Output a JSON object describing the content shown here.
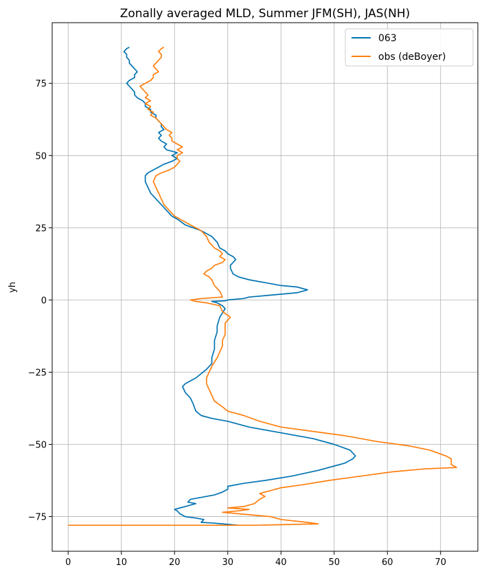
{
  "chart_data": {
    "type": "line",
    "title": "Zonally averaged MLD, Summer JFM(SH), JAS(NH)",
    "xlabel": "",
    "ylabel": "yh",
    "xlim": [
      -3,
      77
    ],
    "ylim": [
      -87,
      96
    ],
    "xticks": [
      0,
      10,
      20,
      30,
      40,
      50,
      60,
      70
    ],
    "yticks": [
      -75,
      -50,
      -25,
      0,
      25,
      50,
      75
    ],
    "xtick_labels": [
      "0",
      "10",
      "20",
      "30",
      "40",
      "50",
      "60",
      "70"
    ],
    "ytick_labels": [
      "−75",
      "−50",
      "−25",
      "0",
      "25",
      "50",
      "75"
    ],
    "grid": true,
    "legend_position": "top-right",
    "series": [
      {
        "name": "063",
        "color": "#0173b2",
        "points": [
          [
            32,
            -78
          ],
          [
            29,
            -77.5
          ],
          [
            27,
            -77.2
          ],
          [
            25,
            -77
          ],
          [
            25.5,
            -76
          ],
          [
            24,
            -75.5
          ],
          [
            22,
            -75
          ],
          [
            21,
            -74
          ],
          [
            20.5,
            -73
          ],
          [
            20,
            -72.5
          ],
          [
            21,
            -72
          ],
          [
            22,
            -71.5
          ],
          [
            23,
            -71
          ],
          [
            24,
            -70.5
          ],
          [
            22.5,
            -70
          ],
          [
            23,
            -69
          ],
          [
            24.5,
            -68.5
          ],
          [
            26,
            -68
          ],
          [
            27.5,
            -67.5
          ],
          [
            29,
            -66.5
          ],
          [
            30,
            -65.5
          ],
          [
            30,
            -64.5
          ],
          [
            33,
            -63.5
          ],
          [
            37,
            -62.5
          ],
          [
            42,
            -61
          ],
          [
            47,
            -59
          ],
          [
            50,
            -57.5
          ],
          [
            52,
            -56.5
          ],
          [
            53.5,
            -55
          ],
          [
            54,
            -54
          ],
          [
            53,
            -52
          ],
          [
            50,
            -50
          ],
          [
            46,
            -48
          ],
          [
            40,
            -46
          ],
          [
            34,
            -44
          ],
          [
            30,
            -42
          ],
          [
            27,
            -41
          ],
          [
            25,
            -40
          ],
          [
            24,
            -38.5
          ],
          [
            23.5,
            -36
          ],
          [
            23,
            -34
          ],
          [
            22,
            -32
          ],
          [
            21.5,
            -30
          ],
          [
            22,
            -29
          ],
          [
            24,
            -27
          ],
          [
            26,
            -24
          ],
          [
            27,
            -22
          ],
          [
            27,
            -20
          ],
          [
            27.5,
            -17
          ],
          [
            27.5,
            -14
          ],
          [
            28,
            -11
          ],
          [
            28,
            -9
          ],
          [
            28.5,
            -6
          ],
          [
            29,
            -4.5
          ],
          [
            29.5,
            -3
          ],
          [
            29,
            -2
          ],
          [
            28,
            -1
          ],
          [
            27,
            -0.5
          ],
          [
            29.5,
            -0.3
          ],
          [
            30,
            0
          ],
          [
            33,
            0.5
          ],
          [
            34,
            1
          ],
          [
            37,
            1.5
          ],
          [
            40,
            2
          ],
          [
            43,
            2.5
          ],
          [
            45,
            3.5
          ],
          [
            43,
            4.5
          ],
          [
            40,
            5
          ],
          [
            37,
            6
          ],
          [
            34,
            7
          ],
          [
            32,
            8
          ],
          [
            31,
            9
          ],
          [
            30.5,
            11
          ],
          [
            30.5,
            12
          ],
          [
            31,
            13
          ],
          [
            31.5,
            14
          ],
          [
            31,
            15
          ],
          [
            30,
            16
          ],
          [
            29.5,
            17
          ],
          [
            28.5,
            18
          ],
          [
            28,
            20
          ],
          [
            27,
            22
          ],
          [
            25,
            24
          ],
          [
            22,
            26
          ],
          [
            20.5,
            28
          ],
          [
            19.5,
            29
          ],
          [
            18.5,
            31
          ],
          [
            17.5,
            33
          ],
          [
            16.5,
            35
          ],
          [
            15.5,
            37
          ],
          [
            15,
            39
          ],
          [
            14.5,
            41
          ],
          [
            14.5,
            43
          ],
          [
            15,
            44
          ],
          [
            16,
            45
          ],
          [
            17,
            46
          ],
          [
            18,
            47
          ],
          [
            19.5,
            48
          ],
          [
            20.5,
            49
          ],
          [
            19.5,
            50
          ],
          [
            20.5,
            51
          ],
          [
            18.5,
            52
          ],
          [
            18,
            53
          ],
          [
            18.5,
            54
          ],
          [
            17.5,
            55
          ],
          [
            17,
            56
          ],
          [
            17.5,
            57
          ],
          [
            17,
            58
          ],
          [
            18,
            59
          ],
          [
            17.5,
            60
          ],
          [
            17.5,
            61
          ],
          [
            17,
            62
          ],
          [
            16.5,
            63
          ],
          [
            16.5,
            64
          ],
          [
            15.5,
            65
          ],
          [
            15.5,
            66
          ],
          [
            14.5,
            67
          ],
          [
            14.5,
            68
          ],
          [
            14,
            69
          ],
          [
            13,
            70
          ],
          [
            12.5,
            71
          ],
          [
            12.5,
            72
          ],
          [
            12,
            73
          ],
          [
            11.5,
            74
          ],
          [
            11,
            75
          ],
          [
            11.5,
            76
          ],
          [
            12.5,
            77
          ],
          [
            12.5,
            78
          ],
          [
            13,
            79
          ],
          [
            12.5,
            80
          ],
          [
            12,
            81
          ],
          [
            11.5,
            82
          ],
          [
            11.5,
            83
          ],
          [
            11,
            84
          ],
          [
            11,
            85
          ],
          [
            10.5,
            86
          ],
          [
            11,
            87
          ],
          [
            11.5,
            87.5
          ]
        ]
      },
      {
        "name": "obs (deBoyer)",
        "color": "#ff7f0e",
        "points": [
          [
            0,
            -78
          ],
          [
            15,
            -78
          ],
          [
            35,
            -78
          ],
          [
            47,
            -77.5
          ],
          [
            45,
            -77
          ],
          [
            40,
            -76
          ],
          [
            38,
            -75
          ],
          [
            35,
            -74.5
          ],
          [
            32,
            -74
          ],
          [
            29,
            -73.5
          ],
          [
            32,
            -73
          ],
          [
            34,
            -72.5
          ],
          [
            30,
            -72
          ],
          [
            33,
            -71.5
          ],
          [
            35,
            -70.5
          ],
          [
            36,
            -69
          ],
          [
            37,
            -68
          ],
          [
            36,
            -67
          ],
          [
            38,
            -66
          ],
          [
            40,
            -65
          ],
          [
            44,
            -64
          ],
          [
            49,
            -62.5
          ],
          [
            55,
            -61
          ],
          [
            61,
            -59.5
          ],
          [
            67,
            -58.5
          ],
          [
            73,
            -58
          ],
          [
            72,
            -57
          ],
          [
            72,
            -55
          ],
          [
            71,
            -54
          ],
          [
            68,
            -52
          ],
          [
            64,
            -50.5
          ],
          [
            58,
            -49
          ],
          [
            52,
            -47
          ],
          [
            46,
            -45.5
          ],
          [
            40,
            -44
          ],
          [
            36,
            -42
          ],
          [
            33,
            -40
          ],
          [
            30,
            -38.5
          ],
          [
            29,
            -37
          ],
          [
            27.5,
            -35
          ],
          [
            27,
            -33
          ],
          [
            26.5,
            -31
          ],
          [
            26,
            -29
          ],
          [
            26,
            -27
          ],
          [
            26.5,
            -25
          ],
          [
            27,
            -23
          ],
          [
            28,
            -20
          ],
          [
            28.5,
            -18
          ],
          [
            29,
            -16
          ],
          [
            29,
            -14
          ],
          [
            29.5,
            -12
          ],
          [
            29.5,
            -10
          ],
          [
            29.5,
            -8
          ],
          [
            30.5,
            -6
          ],
          [
            29,
            -4
          ],
          [
            28.5,
            -2
          ],
          [
            26,
            -1
          ],
          [
            24,
            -0.5
          ],
          [
            23,
            0
          ],
          [
            25,
            0.5
          ],
          [
            29,
            1
          ],
          [
            28.5,
            3
          ],
          [
            27.5,
            5
          ],
          [
            27,
            7
          ],
          [
            26.5,
            8
          ],
          [
            25.5,
            9
          ],
          [
            26,
            10
          ],
          [
            27,
            11
          ],
          [
            27.5,
            12
          ],
          [
            29,
            13
          ],
          [
            29.5,
            14
          ],
          [
            28.5,
            15
          ],
          [
            29,
            16
          ],
          [
            28.5,
            17
          ],
          [
            27.5,
            18
          ],
          [
            27,
            19
          ],
          [
            26.5,
            20
          ],
          [
            26,
            22
          ],
          [
            25,
            24
          ],
          [
            23,
            26
          ],
          [
            21,
            28
          ],
          [
            20,
            29
          ],
          [
            19,
            31
          ],
          [
            18,
            33
          ],
          [
            17.5,
            35
          ],
          [
            17,
            37
          ],
          [
            16.5,
            39
          ],
          [
            16,
            41
          ],
          [
            16.5,
            43
          ],
          [
            17.5,
            44
          ],
          [
            19,
            45
          ],
          [
            20,
            46
          ],
          [
            20.5,
            47
          ],
          [
            21,
            48
          ],
          [
            20.5,
            49
          ],
          [
            20.5,
            50
          ],
          [
            21.5,
            51
          ],
          [
            20.5,
            52
          ],
          [
            21.5,
            53
          ],
          [
            20.5,
            54
          ],
          [
            19.5,
            55
          ],
          [
            19.5,
            56
          ],
          [
            19,
            57
          ],
          [
            19.5,
            58
          ],
          [
            18.5,
            59
          ],
          [
            18,
            60
          ],
          [
            17.5,
            61
          ],
          [
            17,
            62
          ],
          [
            16.5,
            63
          ],
          [
            15.5,
            64
          ],
          [
            16,
            65
          ],
          [
            15,
            66
          ],
          [
            15.5,
            67
          ],
          [
            14.5,
            68
          ],
          [
            15.5,
            69
          ],
          [
            14.5,
            70
          ],
          [
            15,
            71
          ],
          [
            14.5,
            72
          ],
          [
            14,
            73
          ],
          [
            13.5,
            74
          ],
          [
            14.5,
            75
          ],
          [
            15.5,
            76
          ],
          [
            16,
            77
          ],
          [
            16,
            78
          ],
          [
            17,
            79
          ],
          [
            16.5,
            80
          ],
          [
            16,
            81
          ],
          [
            16.5,
            82
          ],
          [
            17,
            83
          ],
          [
            17.5,
            84
          ],
          [
            17.5,
            85
          ],
          [
            17,
            86
          ],
          [
            17.5,
            87
          ],
          [
            18,
            87.5
          ]
        ]
      }
    ]
  }
}
